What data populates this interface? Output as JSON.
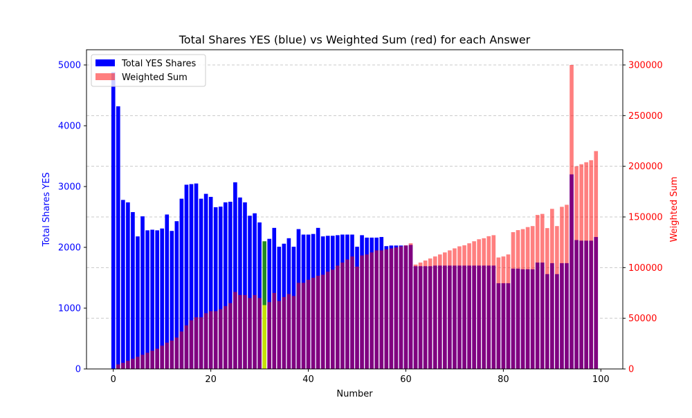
{
  "chart_data": {
    "type": "bar",
    "title": "Total Shares YES (blue) vs Weighted Sum (red) for each Answer",
    "xlabel": "Number",
    "ylabel_left": "Total Shares YES",
    "ylabel_right": "Weighted Sum",
    "xlim": [
      -5.5,
      104.5
    ],
    "ylim_left": [
      0,
      5250
    ],
    "ylim_right": [
      0,
      315000
    ],
    "x_ticks": [
      0,
      20,
      40,
      60,
      80,
      100
    ],
    "x_tick_labels": [
      "0",
      "20",
      "40",
      "60",
      "80",
      "100"
    ],
    "y_left_ticks": [
      0,
      1000,
      2000,
      3000,
      4000,
      5000
    ],
    "y_left_tick_labels": [
      "0",
      "1000",
      "2000",
      "3000",
      "4000",
      "5000"
    ],
    "y_right_ticks": [
      0,
      50000,
      100000,
      150000,
      200000,
      250000,
      300000
    ],
    "y_right_tick_labels": [
      "0",
      "50000",
      "100000",
      "150000",
      "200000",
      "250000",
      "300000"
    ],
    "grid": "horizontal dashed, right axis",
    "legend_position": "top-left",
    "legend": [
      "Total YES Shares",
      "Weighted Sum"
    ],
    "colors": {
      "yes": "#0000ff",
      "weighted": "#ff0000",
      "overlap": "#800080",
      "highlight_yes": "#228b22",
      "highlight_weighted": "#ffff00",
      "left_axis": "#0000ff",
      "right_axis": "#ff0000",
      "text": "#000000",
      "grid": "#b0b0b0"
    },
    "highlight_index": 31,
    "x": [
      0,
      1,
      2,
      3,
      4,
      5,
      6,
      7,
      8,
      9,
      10,
      11,
      12,
      13,
      14,
      15,
      16,
      17,
      18,
      19,
      20,
      21,
      22,
      23,
      24,
      25,
      26,
      27,
      28,
      29,
      30,
      31,
      32,
      33,
      34,
      35,
      36,
      37,
      38,
      39,
      40,
      41,
      42,
      43,
      44,
      45,
      46,
      47,
      48,
      49,
      50,
      51,
      52,
      53,
      54,
      55,
      56,
      57,
      58,
      59,
      60,
      61,
      62,
      63,
      64,
      65,
      66,
      67,
      68,
      69,
      70,
      71,
      72,
      73,
      74,
      75,
      76,
      77,
      78,
      79,
      80,
      81,
      82,
      83,
      84,
      85,
      86,
      87,
      88,
      89,
      90,
      91,
      92,
      93,
      94,
      95,
      96,
      97,
      98,
      99
    ],
    "series": [
      {
        "name": "Total YES Shares",
        "axis": "left",
        "values": [
          4880,
          4320,
          2780,
          2740,
          2580,
          2180,
          2510,
          2280,
          2290,
          2280,
          2310,
          2540,
          2270,
          2430,
          2800,
          3030,
          3040,
          3050,
          2800,
          2880,
          2830,
          2660,
          2670,
          2740,
          2750,
          3070,
          2820,
          2740,
          2520,
          2560,
          2410,
          2100,
          2140,
          2320,
          2010,
          2060,
          2150,
          2010,
          2300,
          2210,
          2210,
          2220,
          2320,
          2180,
          2190,
          2190,
          2200,
          2210,
          2210,
          2210,
          2010,
          2200,
          2160,
          2160,
          2160,
          2170,
          2020,
          2030,
          2030,
          2030,
          2030,
          2040,
          1690,
          1690,
          1690,
          1690,
          1700,
          1700,
          1700,
          1700,
          1700,
          1700,
          1700,
          1700,
          1700,
          1700,
          1700,
          1700,
          1700,
          1410,
          1410,
          1410,
          1650,
          1650,
          1640,
          1640,
          1640,
          1750,
          1750,
          1560,
          1740,
          1560,
          1740,
          1740,
          3200,
          2120,
          2110,
          2110,
          2110,
          2170
        ]
      },
      {
        "name": "Weighted Sum",
        "axis": "right",
        "values": [
          0,
          4500,
          6000,
          8000,
          10000,
          12000,
          14000,
          16000,
          18000,
          20000,
          23000,
          26000,
          28000,
          31000,
          37000,
          43000,
          48000,
          51000,
          51000,
          55000,
          57000,
          57000,
          59000,
          62000,
          65000,
          76000,
          73000,
          73000,
          70000,
          73000,
          70000,
          63000,
          66000,
          75000,
          67000,
          71000,
          74000,
          72000,
          85000,
          85000,
          88000,
          90000,
          92000,
          93000,
          96000,
          98000,
          102000,
          105000,
          108000,
          111000,
          101000,
          112000,
          113000,
          115000,
          117000,
          117000,
          118000,
          119000,
          120000,
          121000,
          122000,
          124000,
          103000,
          105000,
          107000,
          109000,
          111000,
          113000,
          115000,
          117000,
          119000,
          121000,
          122000,
          124000,
          126000,
          128000,
          129000,
          131000,
          132000,
          110000,
          111000,
          113000,
          135000,
          137000,
          138000,
          140000,
          141000,
          152000,
          153000,
          139000,
          158000,
          141000,
          160000,
          162000,
          300000,
          200000,
          202000,
          204000,
          206000,
          215000
        ]
      }
    ]
  }
}
